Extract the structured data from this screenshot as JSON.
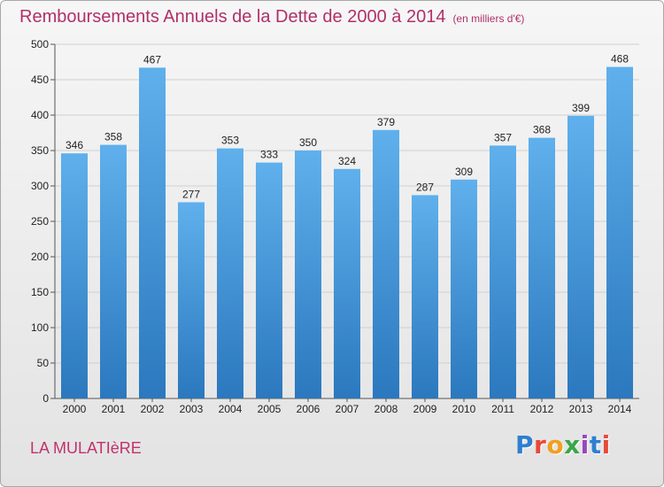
{
  "title": "Remboursements Annuels de la Dette de 2000 à 2014",
  "unit": "(en milliers d'€)",
  "commune": "LA MULATIèRE",
  "logo": {
    "letters": [
      "P",
      "r",
      "o",
      "x",
      "i",
      "t",
      "i"
    ],
    "colors": [
      "#2e7fd0",
      "#e8493a",
      "#f0a020",
      "#3aa64a",
      "#9b45c0",
      "#2e7fd0",
      "#e8493a"
    ]
  },
  "colors": {
    "bar_top": "#5fb0ec",
    "bar_bottom": "#2b78be",
    "title": "#b0306a"
  },
  "chart_data": {
    "type": "bar",
    "categories": [
      "2000",
      "2001",
      "2002",
      "2003",
      "2004",
      "2005",
      "2006",
      "2007",
      "2008",
      "2009",
      "2010",
      "2011",
      "2012",
      "2013",
      "2014"
    ],
    "values": [
      346,
      358,
      467,
      277,
      353,
      333,
      350,
      324,
      379,
      287,
      309,
      357,
      368,
      399,
      468
    ],
    "title": "Remboursements Annuels de la Dette de 2000 à 2014",
    "xlabel": "",
    "ylabel": "",
    "ylim": [
      0,
      500
    ],
    "yticks": [
      0,
      50,
      100,
      150,
      200,
      250,
      300,
      350,
      400,
      450,
      500
    ],
    "grid": true,
    "legend": "none"
  }
}
